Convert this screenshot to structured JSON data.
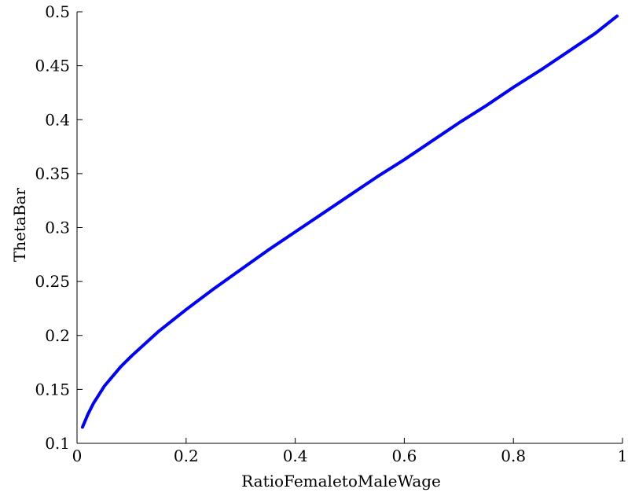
{
  "chart_data": {
    "type": "line",
    "title": "",
    "xlabel": "RatioFemaletoMaleWage",
    "ylabel": "ThetaBar",
    "xlim": [
      0,
      1
    ],
    "ylim": [
      0.1,
      0.5
    ],
    "xticks": [
      0,
      0.2,
      0.4,
      0.6,
      0.8,
      1
    ],
    "xtick_labels": [
      "0",
      "0.2",
      "0.4",
      "0.6",
      "0.8",
      "1"
    ],
    "yticks": [
      0.1,
      0.15,
      0.2,
      0.25,
      0.3,
      0.35,
      0.4,
      0.45,
      0.5
    ],
    "ytick_labels": [
      "0.1",
      "0.15",
      "0.2",
      "0.25",
      "0.3",
      "0.35",
      "0.4",
      "0.45",
      "0.5"
    ],
    "grid": false,
    "legend": "none",
    "series": [
      {
        "color": "#0000ff",
        "x": [
          0.01,
          0.02,
          0.03,
          0.05,
          0.08,
          0.1,
          0.15,
          0.2,
          0.25,
          0.3,
          0.35,
          0.4,
          0.45,
          0.5,
          0.55,
          0.6,
          0.65,
          0.7,
          0.75,
          0.8,
          0.85,
          0.9,
          0.95,
          0.99
        ],
        "y": [
          0.115,
          0.127,
          0.137,
          0.153,
          0.171,
          0.181,
          0.204,
          0.224,
          0.243,
          0.261,
          0.279,
          0.296,
          0.313,
          0.33,
          0.347,
          0.363,
          0.38,
          0.397,
          0.413,
          0.43,
          0.446,
          0.463,
          0.48,
          0.496
        ]
      }
    ]
  }
}
